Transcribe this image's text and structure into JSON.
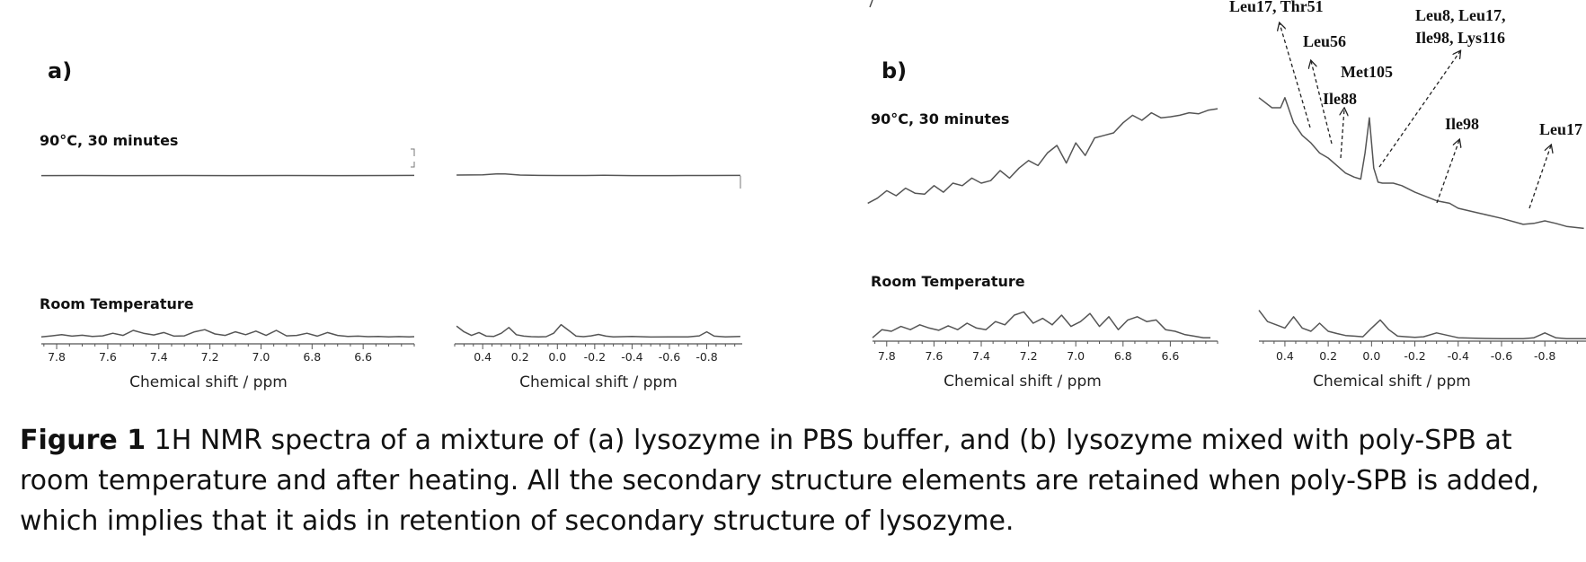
{
  "chart_data": [
    {
      "type": "line",
      "panel_label": "a)",
      "axes": [
        {
          "xlim": [
            7.86,
            6.4
          ],
          "ticks": [
            7.8,
            7.6,
            7.4,
            7.2,
            7.0,
            6.8,
            6.6
          ],
          "xlabel": "Chemical shift / ppm"
        },
        {
          "xlim": [
            0.55,
            -0.99
          ],
          "ticks": [
            0.4,
            0.2,
            0.0,
            -0.2,
            -0.4,
            -0.6,
            -0.8
          ],
          "xlabel": "Chemical shift / ppm"
        }
      ],
      "series": [
        {
          "name": "90°C, 30 minutes",
          "aromatic": {
            "x": [
              7.86,
              7.7,
              7.5,
              7.3,
              7.1,
              6.9,
              6.7,
              6.5,
              6.4
            ],
            "y": [
              0.03,
              0.04,
              0.03,
              0.04,
              0.03,
              0.04,
              0.03,
              0.04,
              0.05
            ]
          },
          "aliphatic": {
            "x": [
              0.54,
              0.4,
              0.32,
              0.28,
              0.2,
              0.1,
              0.0,
              -0.15,
              -0.25,
              -0.4,
              -0.6,
              -0.8,
              -0.98
            ],
            "y": [
              0.08,
              0.1,
              0.2,
              0.18,
              0.08,
              0.05,
              0.04,
              0.04,
              0.06,
              0.03,
              0.03,
              0.04,
              0.05
            ]
          }
        },
        {
          "name": "Room Temperature",
          "aromatic": {
            "x": [
              7.86,
              7.82,
              7.78,
              7.74,
              7.7,
              7.66,
              7.62,
              7.58,
              7.54,
              7.5,
              7.46,
              7.42,
              7.38,
              7.34,
              7.3,
              7.26,
              7.22,
              7.18,
              7.14,
              7.1,
              7.06,
              7.02,
              6.98,
              6.94,
              6.9,
              6.86,
              6.82,
              6.78,
              6.74,
              6.7,
              6.66,
              6.62,
              6.58,
              6.54,
              6.5,
              6.46,
              6.42,
              6.4
            ],
            "y": [
              0.05,
              0.12,
              0.2,
              0.1,
              0.16,
              0.08,
              0.12,
              0.3,
              0.15,
              0.5,
              0.3,
              0.18,
              0.35,
              0.1,
              0.12,
              0.4,
              0.55,
              0.25,
              0.15,
              0.4,
              0.2,
              0.45,
              0.15,
              0.5,
              0.12,
              0.15,
              0.3,
              0.1,
              0.35,
              0.15,
              0.08,
              0.1,
              0.06,
              0.08,
              0.05,
              0.07,
              0.05,
              0.06
            ]
          },
          "aliphatic": {
            "x": [
              0.54,
              0.5,
              0.46,
              0.42,
              0.38,
              0.34,
              0.3,
              0.26,
              0.22,
              0.18,
              0.14,
              0.1,
              0.06,
              0.02,
              -0.02,
              -0.06,
              -0.1,
              -0.14,
              -0.18,
              -0.22,
              -0.26,
              -0.3,
              -0.4,
              -0.5,
              -0.6,
              -0.7,
              -0.76,
              -0.8,
              -0.84,
              -0.9,
              -0.98
            ],
            "y": [
              0.8,
              0.4,
              0.15,
              0.35,
              0.1,
              0.08,
              0.3,
              0.7,
              0.2,
              0.1,
              0.06,
              0.05,
              0.06,
              0.3,
              0.9,
              0.5,
              0.1,
              0.06,
              0.12,
              0.22,
              0.1,
              0.05,
              0.08,
              0.04,
              0.05,
              0.05,
              0.12,
              0.4,
              0.1,
              0.05,
              0.08
            ]
          }
        }
      ]
    },
    {
      "type": "line",
      "panel_label": "b)",
      "axes": [
        {
          "xlim": [
            7.86,
            6.4
          ],
          "ticks": [
            7.8,
            7.6,
            7.4,
            7.2,
            7.0,
            6.8,
            6.6
          ],
          "xlabel": "Chemical shift / ppm"
        },
        {
          "xlim": [
            0.52,
            -0.99
          ],
          "ticks": [
            0.4,
            0.2,
            0.0,
            -0.2,
            -0.4,
            -0.6,
            -0.8
          ],
          "xlabel": "Chemical shift / ppm"
        }
      ],
      "series": [
        {
          "name": "90°C, 30 minutes",
          "aromatic": {
            "x": [
              7.88,
              7.84,
              7.8,
              7.76,
              7.72,
              7.68,
              7.64,
              7.6,
              7.56,
              7.52,
              7.48,
              7.44,
              7.4,
              7.36,
              7.32,
              7.28,
              7.24,
              7.2,
              7.16,
              7.12,
              7.08,
              7.04,
              7.0,
              6.96,
              6.92,
              6.88,
              6.84,
              6.8,
              6.76,
              6.72,
              6.68,
              6.64,
              6.6,
              6.56,
              6.52,
              6.48,
              6.44,
              6.4
            ],
            "y": [
              0.1,
              0.2,
              0.35,
              0.25,
              0.4,
              0.3,
              0.28,
              0.45,
              0.32,
              0.5,
              0.45,
              0.6,
              0.5,
              0.55,
              0.75,
              0.6,
              0.8,
              0.95,
              0.85,
              1.1,
              1.25,
              0.9,
              1.3,
              1.05,
              1.4,
              1.45,
              1.5,
              1.7,
              1.85,
              1.75,
              1.9,
              1.8,
              1.82,
              1.85,
              1.9,
              1.88,
              1.95,
              1.98
            ]
          },
          "aliphatic": {
            "x": [
              0.52,
              0.46,
              0.42,
              0.4,
              0.36,
              0.32,
              0.28,
              0.24,
              0.2,
              0.16,
              0.12,
              0.08,
              0.05,
              0.03,
              0.01,
              -0.01,
              -0.03,
              -0.05,
              -0.1,
              -0.14,
              -0.2,
              -0.3,
              -0.36,
              -0.4,
              -0.5,
              -0.6,
              -0.7,
              -0.75,
              -0.8,
              -0.85,
              -0.9,
              -0.98
            ],
            "y": [
              2.2,
              2.0,
              2.0,
              2.2,
              1.7,
              1.45,
              1.3,
              1.1,
              1.0,
              0.85,
              0.7,
              0.62,
              0.58,
              1.1,
              1.8,
              0.8,
              0.52,
              0.5,
              0.5,
              0.45,
              0.32,
              0.15,
              0.1,
              0.0,
              -0.1,
              -0.2,
              -0.32,
              -0.3,
              -0.25,
              -0.3,
              -0.36,
              -0.4
            ]
          }
        },
        {
          "name": "Room Temperature",
          "aromatic": {
            "x": [
              7.86,
              7.82,
              7.78,
              7.74,
              7.7,
              7.66,
              7.62,
              7.58,
              7.54,
              7.5,
              7.46,
              7.42,
              7.38,
              7.34,
              7.3,
              7.26,
              7.22,
              7.18,
              7.14,
              7.1,
              7.06,
              7.02,
              6.98,
              6.94,
              6.9,
              6.86,
              6.82,
              6.78,
              6.74,
              6.7,
              6.66,
              6.62,
              6.58,
              6.54,
              6.5,
              6.46,
              6.43
            ],
            "y": [
              0.05,
              0.3,
              0.25,
              0.4,
              0.3,
              0.45,
              0.35,
              0.28,
              0.42,
              0.3,
              0.5,
              0.35,
              0.3,
              0.55,
              0.45,
              0.75,
              0.85,
              0.5,
              0.65,
              0.45,
              0.75,
              0.4,
              0.55,
              0.8,
              0.4,
              0.7,
              0.3,
              0.6,
              0.7,
              0.55,
              0.6,
              0.3,
              0.25,
              0.15,
              0.1,
              0.05,
              0.05
            ]
          },
          "aliphatic": {
            "x": [
              0.52,
              0.48,
              0.44,
              0.4,
              0.36,
              0.32,
              0.28,
              0.24,
              0.2,
              0.16,
              0.12,
              0.08,
              0.04,
              0.0,
              -0.04,
              -0.08,
              -0.12,
              -0.16,
              -0.2,
              -0.24,
              -0.3,
              -0.4,
              -0.5,
              -0.6,
              -0.7,
              -0.75,
              -0.8,
              -0.85,
              -0.9,
              -0.99
            ],
            "y": [
              0.9,
              0.55,
              0.45,
              0.35,
              0.7,
              0.35,
              0.25,
              0.5,
              0.25,
              0.18,
              0.12,
              0.1,
              0.08,
              0.35,
              0.6,
              0.3,
              0.1,
              0.08,
              0.06,
              0.08,
              0.2,
              0.05,
              0.03,
              0.02,
              0.02,
              0.05,
              0.2,
              0.05,
              0.02,
              0.02
            ]
          }
        }
      ],
      "annotations": [
        {
          "text": "Leu17, Thr51"
        },
        {
          "text": "Leu56"
        },
        {
          "text": "Met105"
        },
        {
          "text": "Ile88"
        },
        {
          "text": "Leu8, Leu17,"
        },
        {
          "text": "Ile98, Lys116"
        },
        {
          "text": "Ile98"
        },
        {
          "text": "Leu17"
        }
      ]
    }
  ],
  "caption": {
    "label": "Figure 1",
    "text": " 1H NMR spectra of a mixture of (a) lysozyme in PBS buffer, and (b) lysozyme mixed with poly-SPB at room temperature and after heating. All the secondary structure elements are retained when poly-SPB is added, which implies that it aids in retention of secondary structure of lysozyme."
  }
}
